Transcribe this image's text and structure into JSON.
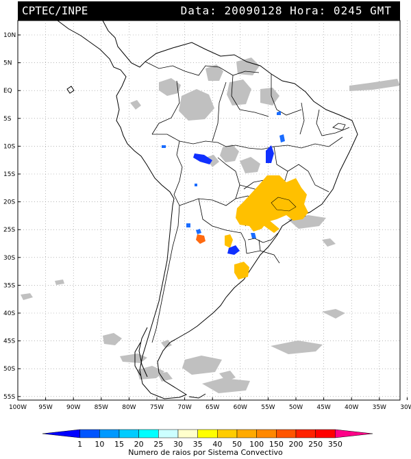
{
  "header": {
    "left": "CPTEC/INPE",
    "right": "Data: 20090128 Hora: 0245 GMT"
  },
  "axes": {
    "lat_labels": [
      "10N",
      "5N",
      "EQ",
      "5S",
      "10S",
      "15S",
      "20S",
      "25S",
      "30S",
      "35S",
      "40S",
      "45S",
      "50S",
      "55S"
    ],
    "lon_labels": [
      "100W",
      "95W",
      "90W",
      "85W",
      "80W",
      "75W",
      "70W",
      "65W",
      "60W",
      "55W",
      "50W",
      "45W",
      "40W",
      "35W",
      "30W"
    ]
  },
  "colorbar": {
    "labels": [
      "1",
      "10",
      "15",
      "20",
      "25",
      "30",
      "35",
      "40",
      "50",
      "100",
      "150",
      "200",
      "250",
      "350"
    ],
    "colors": [
      "#0000ff",
      "#0055ff",
      "#0099ff",
      "#00ccff",
      "#00ffff",
      "#ccffff",
      "#ffffcc",
      "#ffff00",
      "#ffcc00",
      "#ffaa00",
      "#ff8800",
      "#ff5500",
      "#ff2200",
      "#ff0000",
      "#ff0088"
    ],
    "caption": "Numero de raios por Sistema Convectivo"
  },
  "colors": {
    "cloud": "#c0c0c0",
    "blue": "#1030ff",
    "lightblue": "#1a6cff",
    "yellow": "#ffc000",
    "orange": "#ff6a10"
  }
}
